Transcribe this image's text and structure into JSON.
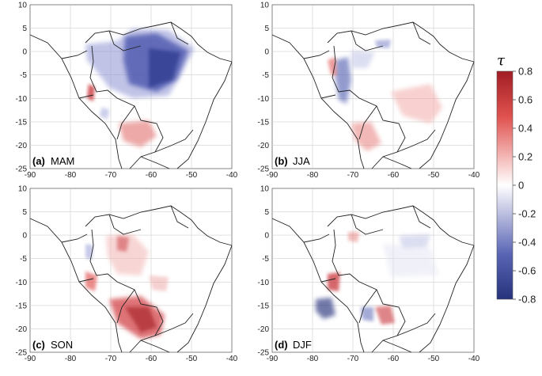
{
  "panels": [
    {
      "letter": "(a)",
      "season": "MAM"
    },
    {
      "letter": "(b)",
      "season": "JJA"
    },
    {
      "letter": "(c)",
      "season": "SON"
    },
    {
      "letter": "(d)",
      "season": "DJF"
    }
  ],
  "axes": {
    "x_ticks": [
      -90,
      -80,
      -70,
      -60,
      -50,
      -40
    ],
    "y_ticks": [
      10,
      5,
      0,
      -5,
      -10,
      -15,
      -20,
      -25
    ],
    "lon_range": [
      -90,
      -40
    ],
    "lat_range": [
      -25,
      10
    ],
    "grid": true
  },
  "colorbar": {
    "title": "τ",
    "ticks": [
      "0.8",
      "0.6",
      "0.4",
      "0.2",
      "0",
      "-0.2",
      "-0.4",
      "-0.6",
      "-0.8"
    ],
    "range": [
      -0.8,
      0.8
    ],
    "colors": {
      "max": "#a11d24",
      "mid": "#ffffff",
      "min": "#27327c"
    }
  }
}
